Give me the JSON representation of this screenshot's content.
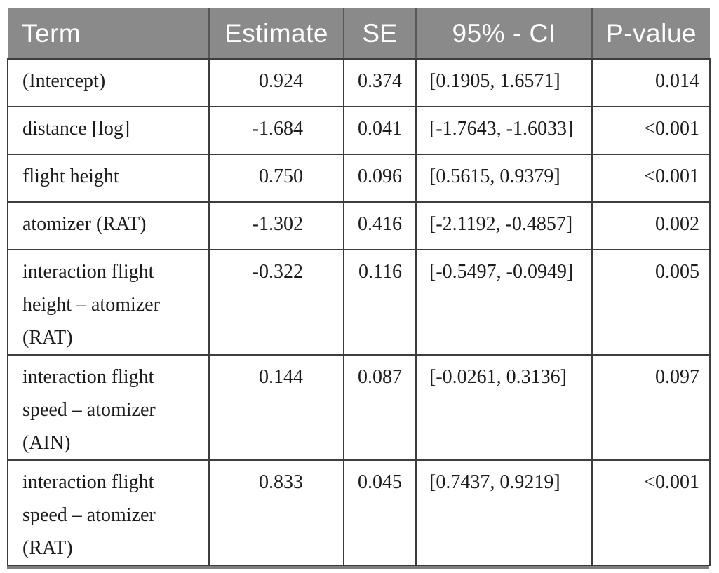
{
  "table": {
    "columns": [
      {
        "id": "term",
        "label": "Term"
      },
      {
        "id": "estimate",
        "label": "Estimate"
      },
      {
        "id": "se",
        "label": "SE"
      },
      {
        "id": "ci",
        "label": "95% - CI"
      },
      {
        "id": "pvalue",
        "label": "P-value"
      }
    ],
    "rows": [
      {
        "term": "(Intercept)",
        "estimate": "0.924",
        "se": "0.374",
        "ci": "[0.1905, 1.6571]",
        "pvalue": "0.014"
      },
      {
        "term": "distance [log]",
        "estimate": "-1.684",
        "se": "0.041",
        "ci": "[-1.7643, -1.6033]",
        "pvalue": "<0.001"
      },
      {
        "term": "flight height",
        "estimate": "0.750",
        "se": "0.096",
        "ci": "[0.5615, 0.9379]",
        "pvalue": "<0.001"
      },
      {
        "term": "atomizer (RAT)",
        "estimate": "-1.302",
        "se": "0.416",
        "ci": "[-2.1192, -0.4857]",
        "pvalue": "0.002"
      },
      {
        "term": "interaction flight height – atomizer (RAT)",
        "estimate": "-0.322",
        "se": "0.116",
        "ci": "[-0.5497, -0.0949]",
        "pvalue": "0.005"
      },
      {
        "term": "interaction flight speed – atomizer (AIN)",
        "estimate": "0.144",
        "se": "0.087",
        "ci": "[-0.0261, 0.3136]",
        "pvalue": "0.097"
      },
      {
        "term": "interaction flight speed – atomizer (RAT)",
        "estimate": "0.833",
        "se": "0.045",
        "ci": "[0.7437, 0.9219]",
        "pvalue": "<0.001"
      }
    ],
    "colors": {
      "header_bg": "#8a8a8a",
      "header_text": "#ffffff",
      "body_text": "#1c1c1c",
      "grid_line": "#3d3d3d",
      "bottom_bar": "#7e7e7e"
    }
  },
  "chart_data": {
    "type": "table",
    "columns": [
      "Term",
      "Estimate",
      "SE",
      "95% - CI",
      "P-value"
    ],
    "rows": [
      [
        "(Intercept)",
        0.924,
        0.374,
        "[0.1905, 1.6571]",
        "0.014"
      ],
      [
        "distance [log]",
        -1.684,
        0.041,
        "[-1.7643, -1.6033]",
        "<0.001"
      ],
      [
        "flight height",
        0.75,
        0.096,
        "[0.5615, 0.9379]",
        "<0.001"
      ],
      [
        "atomizer (RAT)",
        -1.302,
        0.416,
        "[-2.1192, -0.4857]",
        "0.002"
      ],
      [
        "interaction flight height – atomizer (RAT)",
        -0.322,
        0.116,
        "[-0.5497, -0.0949]",
        "0.005"
      ],
      [
        "interaction flight speed – atomizer (AIN)",
        0.144,
        0.087,
        "[-0.0261, 0.3136]",
        "0.097"
      ],
      [
        "interaction flight speed – atomizer (RAT)",
        0.833,
        0.045,
        "[0.7437, 0.9219]",
        "<0.001"
      ]
    ]
  }
}
